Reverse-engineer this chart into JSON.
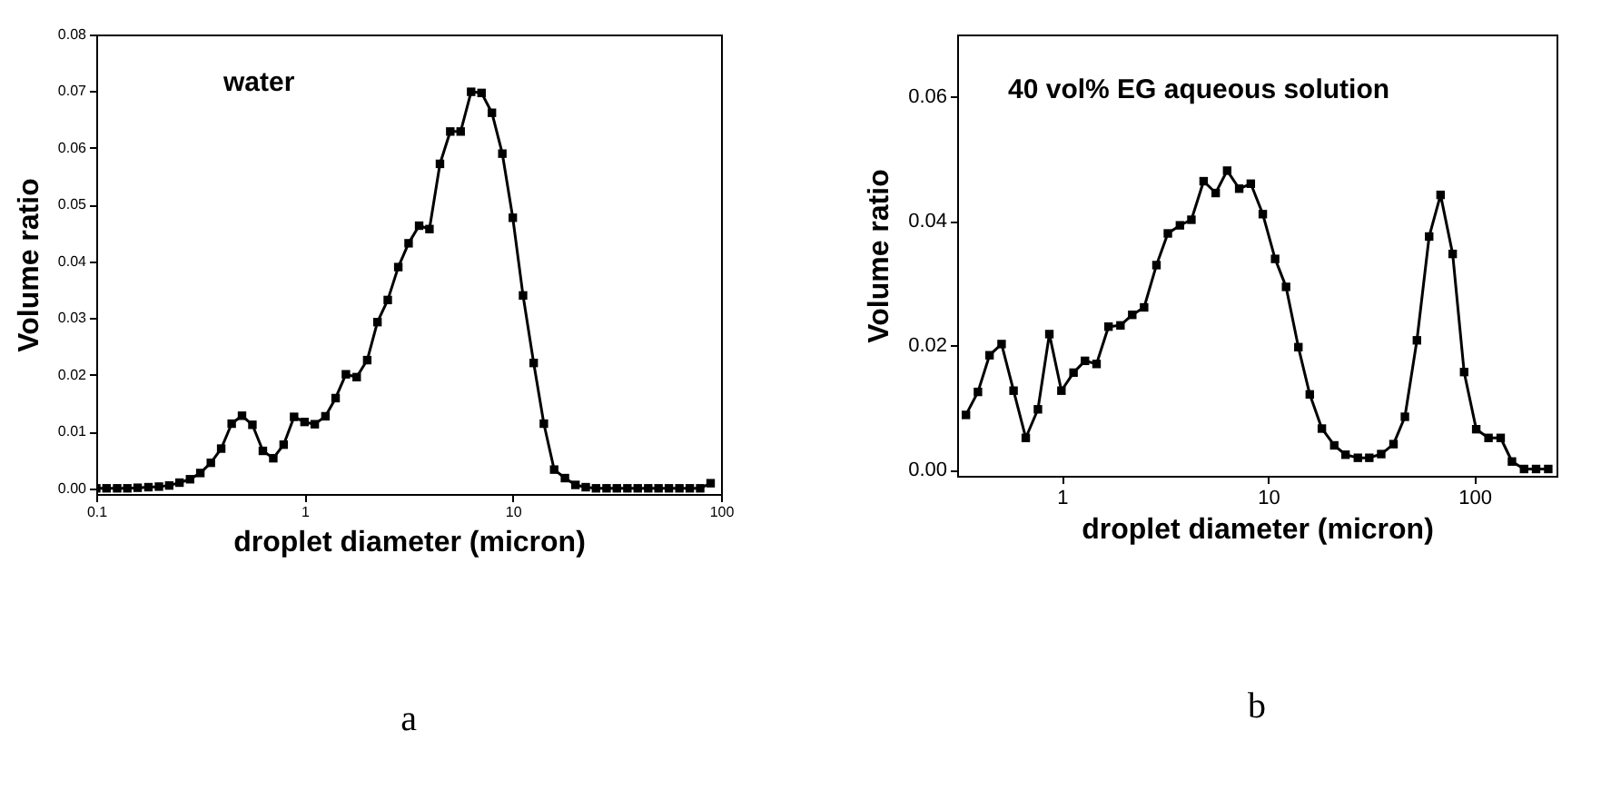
{
  "chart_data": [
    {
      "type": "line",
      "xlabel": "droplet diameter (micron)",
      "ylabel": "Volume ratio",
      "annotations": [
        "water",
        "a"
      ],
      "log": "x",
      "marker": "square",
      "line_style": "solid",
      "xlim": [
        0.1,
        100
      ],
      "xticks": [
        0.1,
        1,
        10,
        100
      ],
      "ylim": [
        -0.001,
        0.08
      ],
      "yticks": [
        {
          "value": 0,
          "label": "0.00"
        },
        0.01,
        0.02,
        0.03,
        0.04,
        0.05,
        0.06,
        0.07,
        0.08
      ],
      "x": [
        0.1,
        0.112,
        0.126,
        0.141,
        0.158,
        0.178,
        0.2,
        0.224,
        0.251,
        0.282,
        0.316,
        0.355,
        0.398,
        0.447,
        0.501,
        0.562,
        0.631,
        0.708,
        0.794,
        0.891,
        1,
        1.12,
        1.26,
        1.41,
        1.58,
        1.78,
        2,
        2.24,
        2.51,
        2.82,
        3.16,
        3.55,
        3.98,
        4.47,
        5.01,
        5.62,
        6.31,
        7.08,
        7.94,
        8.91,
        10,
        11.2,
        12.6,
        14.1,
        15.8,
        17.8,
        20,
        22.4,
        25.1,
        28.2,
        31.6,
        35.5,
        39.8,
        44.7,
        50.1,
        56.2,
        63.1,
        70.8,
        79.4,
        89.1
      ],
      "series": [
        {
          "color": "#000000",
          "values": [
            0,
            0,
            0,
            0,
            0.0001,
            0.0002,
            0.0003,
            0.0005,
            0.001,
            0.0016,
            0.0027,
            0.0045,
            0.007,
            0.0114,
            0.0128,
            0.0112,
            0.0066,
            0.0053,
            0.0077,
            0.0126,
            0.0117,
            0.0113,
            0.0127,
            0.0159,
            0.0201,
            0.0196,
            0.0226,
            0.0293,
            0.0332,
            0.039,
            0.0432,
            0.0463,
            0.0457,
            0.0572,
            0.0629,
            0.0629,
            0.0699,
            0.0697,
            0.0662,
            0.059,
            0.0477,
            0.034,
            0.0221,
            0.0114,
            0.0033,
            0.0018,
            0.0006,
            0.0002,
            0,
            0,
            0,
            0,
            0,
            0,
            0,
            0,
            0,
            0,
            0,
            0.0009
          ]
        }
      ]
    },
    {
      "type": "line",
      "xlabel": "droplet diameter (micron)",
      "ylabel": "Volume ratio",
      "annotations": [
        "40 vol% EG aqueous solution",
        "b"
      ],
      "log": "x",
      "marker": "square",
      "line_style": "solid",
      "xlim": [
        0.31,
        250
      ],
      "xticks": [
        1,
        10,
        100
      ],
      "ylim": [
        -0.001,
        0.07
      ],
      "yticks": [
        {
          "value": 0,
          "label": "0.00"
        },
        0.02,
        0.04,
        0.06
      ],
      "x": [
        0.342,
        0.391,
        0.445,
        0.509,
        0.582,
        0.667,
        0.764,
        0.868,
        0.993,
        1.137,
        1.292,
        1.47,
        1.68,
        1.92,
        2.19,
        2.5,
        2.87,
        3.26,
        3.73,
        4.24,
        4.86,
        5.56,
        6.32,
        7.23,
        8.23,
        9.41,
        10.8,
        12.2,
        14,
        15.9,
        18.2,
        20.9,
        23.7,
        27.2,
        30.9,
        35.3,
        40.5,
        46,
        52.6,
        60.3,
        68.5,
        78.4,
        89.1,
        102,
        117,
        134,
        152,
        174,
        199,
        228
      ],
      "series": [
        {
          "color": "#000000",
          "values": [
            0.0088,
            0.0125,
            0.0184,
            0.0202,
            0.0127,
            0.0051,
            0.0097,
            0.0218,
            0.0127,
            0.0156,
            0.0175,
            0.017,
            0.023,
            0.0232,
            0.0249,
            0.0261,
            0.0329,
            0.038,
            0.0393,
            0.0402,
            0.0464,
            0.0445,
            0.0481,
            0.0452,
            0.046,
            0.0411,
            0.0339,
            0.0294,
            0.0197,
            0.0121,
            0.0066,
            0.0039,
            0.0024,
            0.0019,
            0.0019,
            0.0025,
            0.0041,
            0.0085,
            0.0208,
            0.0375,
            0.0442,
            0.0347,
            0.0157,
            0.0065,
            0.0051,
            0.0051,
            0.0013,
            0.0001,
            0.0001,
            0.0001
          ]
        }
      ]
    }
  ]
}
